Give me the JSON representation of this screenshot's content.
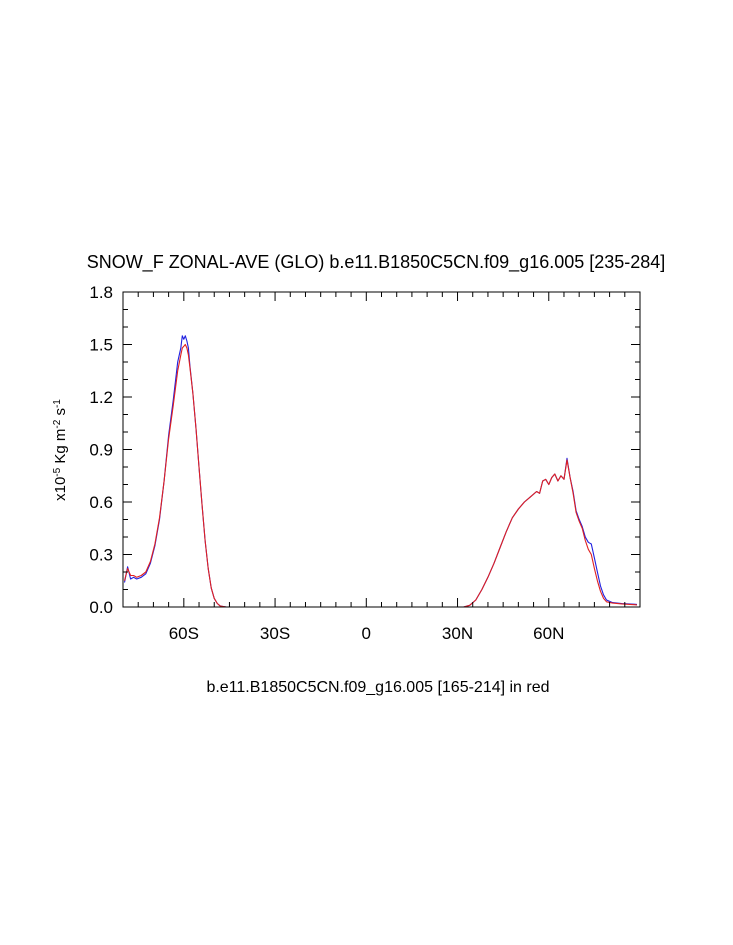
{
  "chart_data": {
    "type": "line",
    "title": "SNOW_F ZONAL-AVE (GLO) b.e11.B1850C5CN.f09_g16.005 [235-284]",
    "xlabel": "b.e11.B1850C5CN.f09_g16.005 [165-214] in red",
    "ylabel": {
      "prefix": "x10",
      "exp": "-5",
      "unit": " Kg m",
      "unit_exp": "-2",
      "unit2": " s",
      "unit2_exp": "-1"
    },
    "xlim": [
      -80,
      90
    ],
    "ylim": [
      0.0,
      1.8
    ],
    "x_ticks": [
      {
        "value": -60,
        "label": "60S"
      },
      {
        "value": -30,
        "label": "30S"
      },
      {
        "value": 0,
        "label": "0"
      },
      {
        "value": 30,
        "label": "30N"
      },
      {
        "value": 60,
        "label": "60N"
      }
    ],
    "y_ticks": [
      {
        "value": 0.0,
        "label": "0.0"
      },
      {
        "value": 0.3,
        "label": "0.3"
      },
      {
        "value": 0.6,
        "label": "0.6"
      },
      {
        "value": 0.9,
        "label": "0.9"
      },
      {
        "value": 1.2,
        "label": "1.2"
      },
      {
        "value": 1.5,
        "label": "1.5"
      },
      {
        "value": 1.8,
        "label": "1.8"
      }
    ],
    "series": [
      {
        "color": "#2020e0",
        "points": [
          [
            -79.5,
            0.14
          ],
          [
            -78.5,
            0.23
          ],
          [
            -77.5,
            0.16
          ],
          [
            -76.5,
            0.17
          ],
          [
            -75.5,
            0.16
          ],
          [
            -74.0,
            0.17
          ],
          [
            -72.5,
            0.19
          ],
          [
            -71.0,
            0.25
          ],
          [
            -69.5,
            0.35
          ],
          [
            -68.0,
            0.5
          ],
          [
            -66.5,
            0.72
          ],
          [
            -65.0,
            0.98
          ],
          [
            -63.5,
            1.18
          ],
          [
            -62.0,
            1.4
          ],
          [
            -61.0,
            1.48
          ],
          [
            -60.5,
            1.55
          ],
          [
            -60.0,
            1.53
          ],
          [
            -59.5,
            1.55
          ],
          [
            -59.0,
            1.52
          ],
          [
            -58.5,
            1.48
          ],
          [
            -58.0,
            1.38
          ],
          [
            -57.0,
            1.22
          ],
          [
            -56.0,
            1.02
          ],
          [
            -55.0,
            0.8
          ],
          [
            -54.0,
            0.58
          ],
          [
            -53.0,
            0.38
          ],
          [
            -52.0,
            0.22
          ],
          [
            -51.0,
            0.11
          ],
          [
            -50.0,
            0.05
          ],
          [
            -49.0,
            0.02
          ],
          [
            -48.0,
            0.005
          ],
          [
            -46.0,
            0.0
          ],
          [
            -40.0,
            0.0
          ],
          [
            -20.0,
            0.0
          ],
          [
            0.0,
            0.0
          ],
          [
            20.0,
            0.0
          ],
          [
            32.0,
            0.0
          ],
          [
            34.0,
            0.01
          ],
          [
            36.0,
            0.04
          ],
          [
            38.0,
            0.1
          ],
          [
            40.0,
            0.17
          ],
          [
            42.0,
            0.25
          ],
          [
            44.0,
            0.34
          ],
          [
            46.0,
            0.43
          ],
          [
            48.0,
            0.51
          ],
          [
            50.0,
            0.56
          ],
          [
            52.0,
            0.6
          ],
          [
            54.0,
            0.63
          ],
          [
            56.0,
            0.66
          ],
          [
            57.0,
            0.65
          ],
          [
            58.0,
            0.72
          ],
          [
            59.0,
            0.73
          ],
          [
            60.0,
            0.7
          ],
          [
            61.0,
            0.74
          ],
          [
            62.0,
            0.76
          ],
          [
            63.0,
            0.72
          ],
          [
            64.0,
            0.75
          ],
          [
            65.0,
            0.73
          ],
          [
            66.0,
            0.85
          ],
          [
            67.0,
            0.74
          ],
          [
            68.0,
            0.66
          ],
          [
            69.0,
            0.55
          ],
          [
            70.0,
            0.5
          ],
          [
            71.0,
            0.46
          ],
          [
            72.0,
            0.4
          ],
          [
            73.0,
            0.37
          ],
          [
            74.0,
            0.36
          ],
          [
            75.0,
            0.28
          ],
          [
            76.0,
            0.2
          ],
          [
            77.0,
            0.12
          ],
          [
            78.0,
            0.07
          ],
          [
            79.0,
            0.04
          ],
          [
            81.0,
            0.025
          ],
          [
            84.0,
            0.02
          ],
          [
            89.0,
            0.015
          ]
        ]
      },
      {
        "color": "#e02020",
        "points": [
          [
            -79.5,
            0.15
          ],
          [
            -78.5,
            0.22
          ],
          [
            -77.5,
            0.18
          ],
          [
            -76.5,
            0.18
          ],
          [
            -75.5,
            0.17
          ],
          [
            -74.0,
            0.18
          ],
          [
            -72.5,
            0.2
          ],
          [
            -71.0,
            0.26
          ],
          [
            -69.5,
            0.36
          ],
          [
            -68.0,
            0.51
          ],
          [
            -66.5,
            0.72
          ],
          [
            -65.0,
            0.96
          ],
          [
            -63.5,
            1.15
          ],
          [
            -62.0,
            1.35
          ],
          [
            -61.0,
            1.44
          ],
          [
            -60.5,
            1.48
          ],
          [
            -60.0,
            1.49
          ],
          [
            -59.5,
            1.5
          ],
          [
            -59.0,
            1.48
          ],
          [
            -58.5,
            1.44
          ],
          [
            -58.0,
            1.37
          ],
          [
            -57.0,
            1.22
          ],
          [
            -56.0,
            1.02
          ],
          [
            -55.0,
            0.8
          ],
          [
            -54.0,
            0.58
          ],
          [
            -53.0,
            0.38
          ],
          [
            -52.0,
            0.22
          ],
          [
            -51.0,
            0.11
          ],
          [
            -50.0,
            0.05
          ],
          [
            -49.0,
            0.02
          ],
          [
            -48.0,
            0.005
          ],
          [
            -46.0,
            0.0
          ],
          [
            -40.0,
            0.0
          ],
          [
            -20.0,
            0.0
          ],
          [
            0.0,
            0.0
          ],
          [
            20.0,
            0.0
          ],
          [
            32.0,
            0.0
          ],
          [
            34.0,
            0.01
          ],
          [
            36.0,
            0.04
          ],
          [
            38.0,
            0.1
          ],
          [
            40.0,
            0.17
          ],
          [
            42.0,
            0.25
          ],
          [
            44.0,
            0.34
          ],
          [
            46.0,
            0.43
          ],
          [
            48.0,
            0.51
          ],
          [
            50.0,
            0.56
          ],
          [
            52.0,
            0.6
          ],
          [
            54.0,
            0.63
          ],
          [
            56.0,
            0.66
          ],
          [
            57.0,
            0.65
          ],
          [
            58.0,
            0.72
          ],
          [
            59.0,
            0.73
          ],
          [
            60.0,
            0.7
          ],
          [
            61.0,
            0.74
          ],
          [
            62.0,
            0.76
          ],
          [
            63.0,
            0.72
          ],
          [
            64.0,
            0.75
          ],
          [
            65.0,
            0.73
          ],
          [
            66.0,
            0.84
          ],
          [
            67.0,
            0.74
          ],
          [
            68.0,
            0.65
          ],
          [
            69.0,
            0.54
          ],
          [
            70.0,
            0.49
          ],
          [
            71.0,
            0.45
          ],
          [
            72.0,
            0.38
          ],
          [
            73.0,
            0.33
          ],
          [
            74.0,
            0.3
          ],
          [
            75.0,
            0.22
          ],
          [
            76.0,
            0.15
          ],
          [
            77.0,
            0.09
          ],
          [
            78.0,
            0.05
          ],
          [
            79.0,
            0.03
          ],
          [
            81.0,
            0.022
          ],
          [
            84.0,
            0.018
          ],
          [
            89.0,
            0.012
          ]
        ]
      }
    ]
  }
}
